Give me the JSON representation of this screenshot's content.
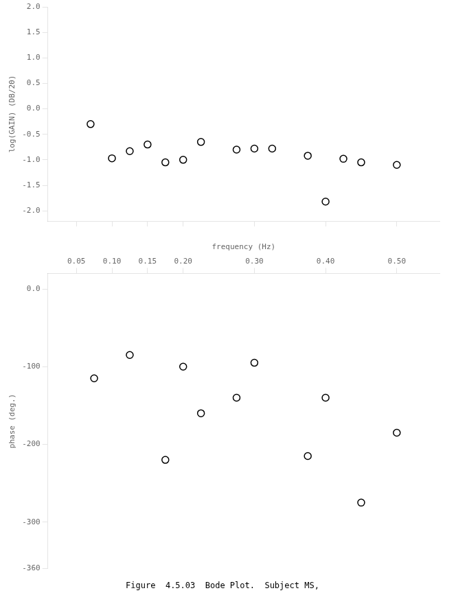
{
  "chart_data": [
    {
      "type": "scatter",
      "x": [
        0.07,
        0.1,
        0.125,
        0.15,
        0.175,
        0.2,
        0.225,
        0.275,
        0.3,
        0.325,
        0.375,
        0.4,
        0.425,
        0.45,
        0.5
      ],
      "values": [
        -0.3,
        -0.97,
        -0.83,
        -0.7,
        -1.05,
        -1.0,
        -0.65,
        -0.8,
        -0.78,
        -0.78,
        -0.92,
        -1.82,
        -0.98,
        -1.05,
        -1.1
      ],
      "color": "black",
      "marker": "circle",
      "y_label": "log(GAIN) (DB/20)",
      "xlim": [
        0.01,
        0.56
      ],
      "xticks": [
        0.05,
        {
          "value": 0.1,
          "label": "0.10"
        },
        0.15,
        {
          "value": 0.2,
          "label": "0.20"
        },
        {
          "value": 0.3,
          "label": "0.30"
        },
        {
          "value": 0.4,
          "label": "0.40"
        },
        {
          "value": 0.5,
          "label": "0.50"
        }
      ],
      "ylim": [
        -2.2,
        2.0
      ],
      "yticks": [
        {
          "value": 2.0,
          "label": "2.0"
        },
        1.5,
        {
          "value": 1.0,
          "label": "1.0"
        },
        0.5,
        {
          "value": 0.0,
          "label": "0.0"
        },
        -0.5,
        {
          "value": -1.0,
          "label": "-1.0"
        },
        -1.5,
        {
          "value": -2.0,
          "label": "-2.0"
        }
      ],
      "grid": false,
      "tick_labels": "y"
    },
    {
      "type": "scatter",
      "x": [
        0.075,
        0.125,
        0.175,
        0.2,
        0.225,
        0.275,
        0.3,
        0.375,
        0.4,
        0.45,
        0.5
      ],
      "values": [
        -115,
        -85,
        -220,
        -100,
        -160,
        -140,
        -95,
        -215,
        -140,
        -275,
        -185
      ],
      "color": "black",
      "marker": "circle",
      "x_label": "frequency (Hz)",
      "y_label": "phase (deg.)",
      "xlim": [
        0.01,
        0.56
      ],
      "xticks": [
        0.05,
        {
          "value": 0.1,
          "label": "0.10"
        },
        0.15,
        {
          "value": 0.2,
          "label": "0.20"
        },
        {
          "value": 0.3,
          "label": "0.30"
        },
        {
          "value": 0.4,
          "label": "0.40"
        },
        {
          "value": 0.5,
          "label": "0.50"
        }
      ],
      "ylim": [
        -360,
        20
      ],
      "yticks": [
        {
          "value": 0.0,
          "label": "0.0"
        },
        -100,
        -200,
        -300,
        -360
      ],
      "grid": false,
      "annotations": [
        "Figure  4.5.03  Bode Plot.  Subject MS,"
      ]
    }
  ]
}
